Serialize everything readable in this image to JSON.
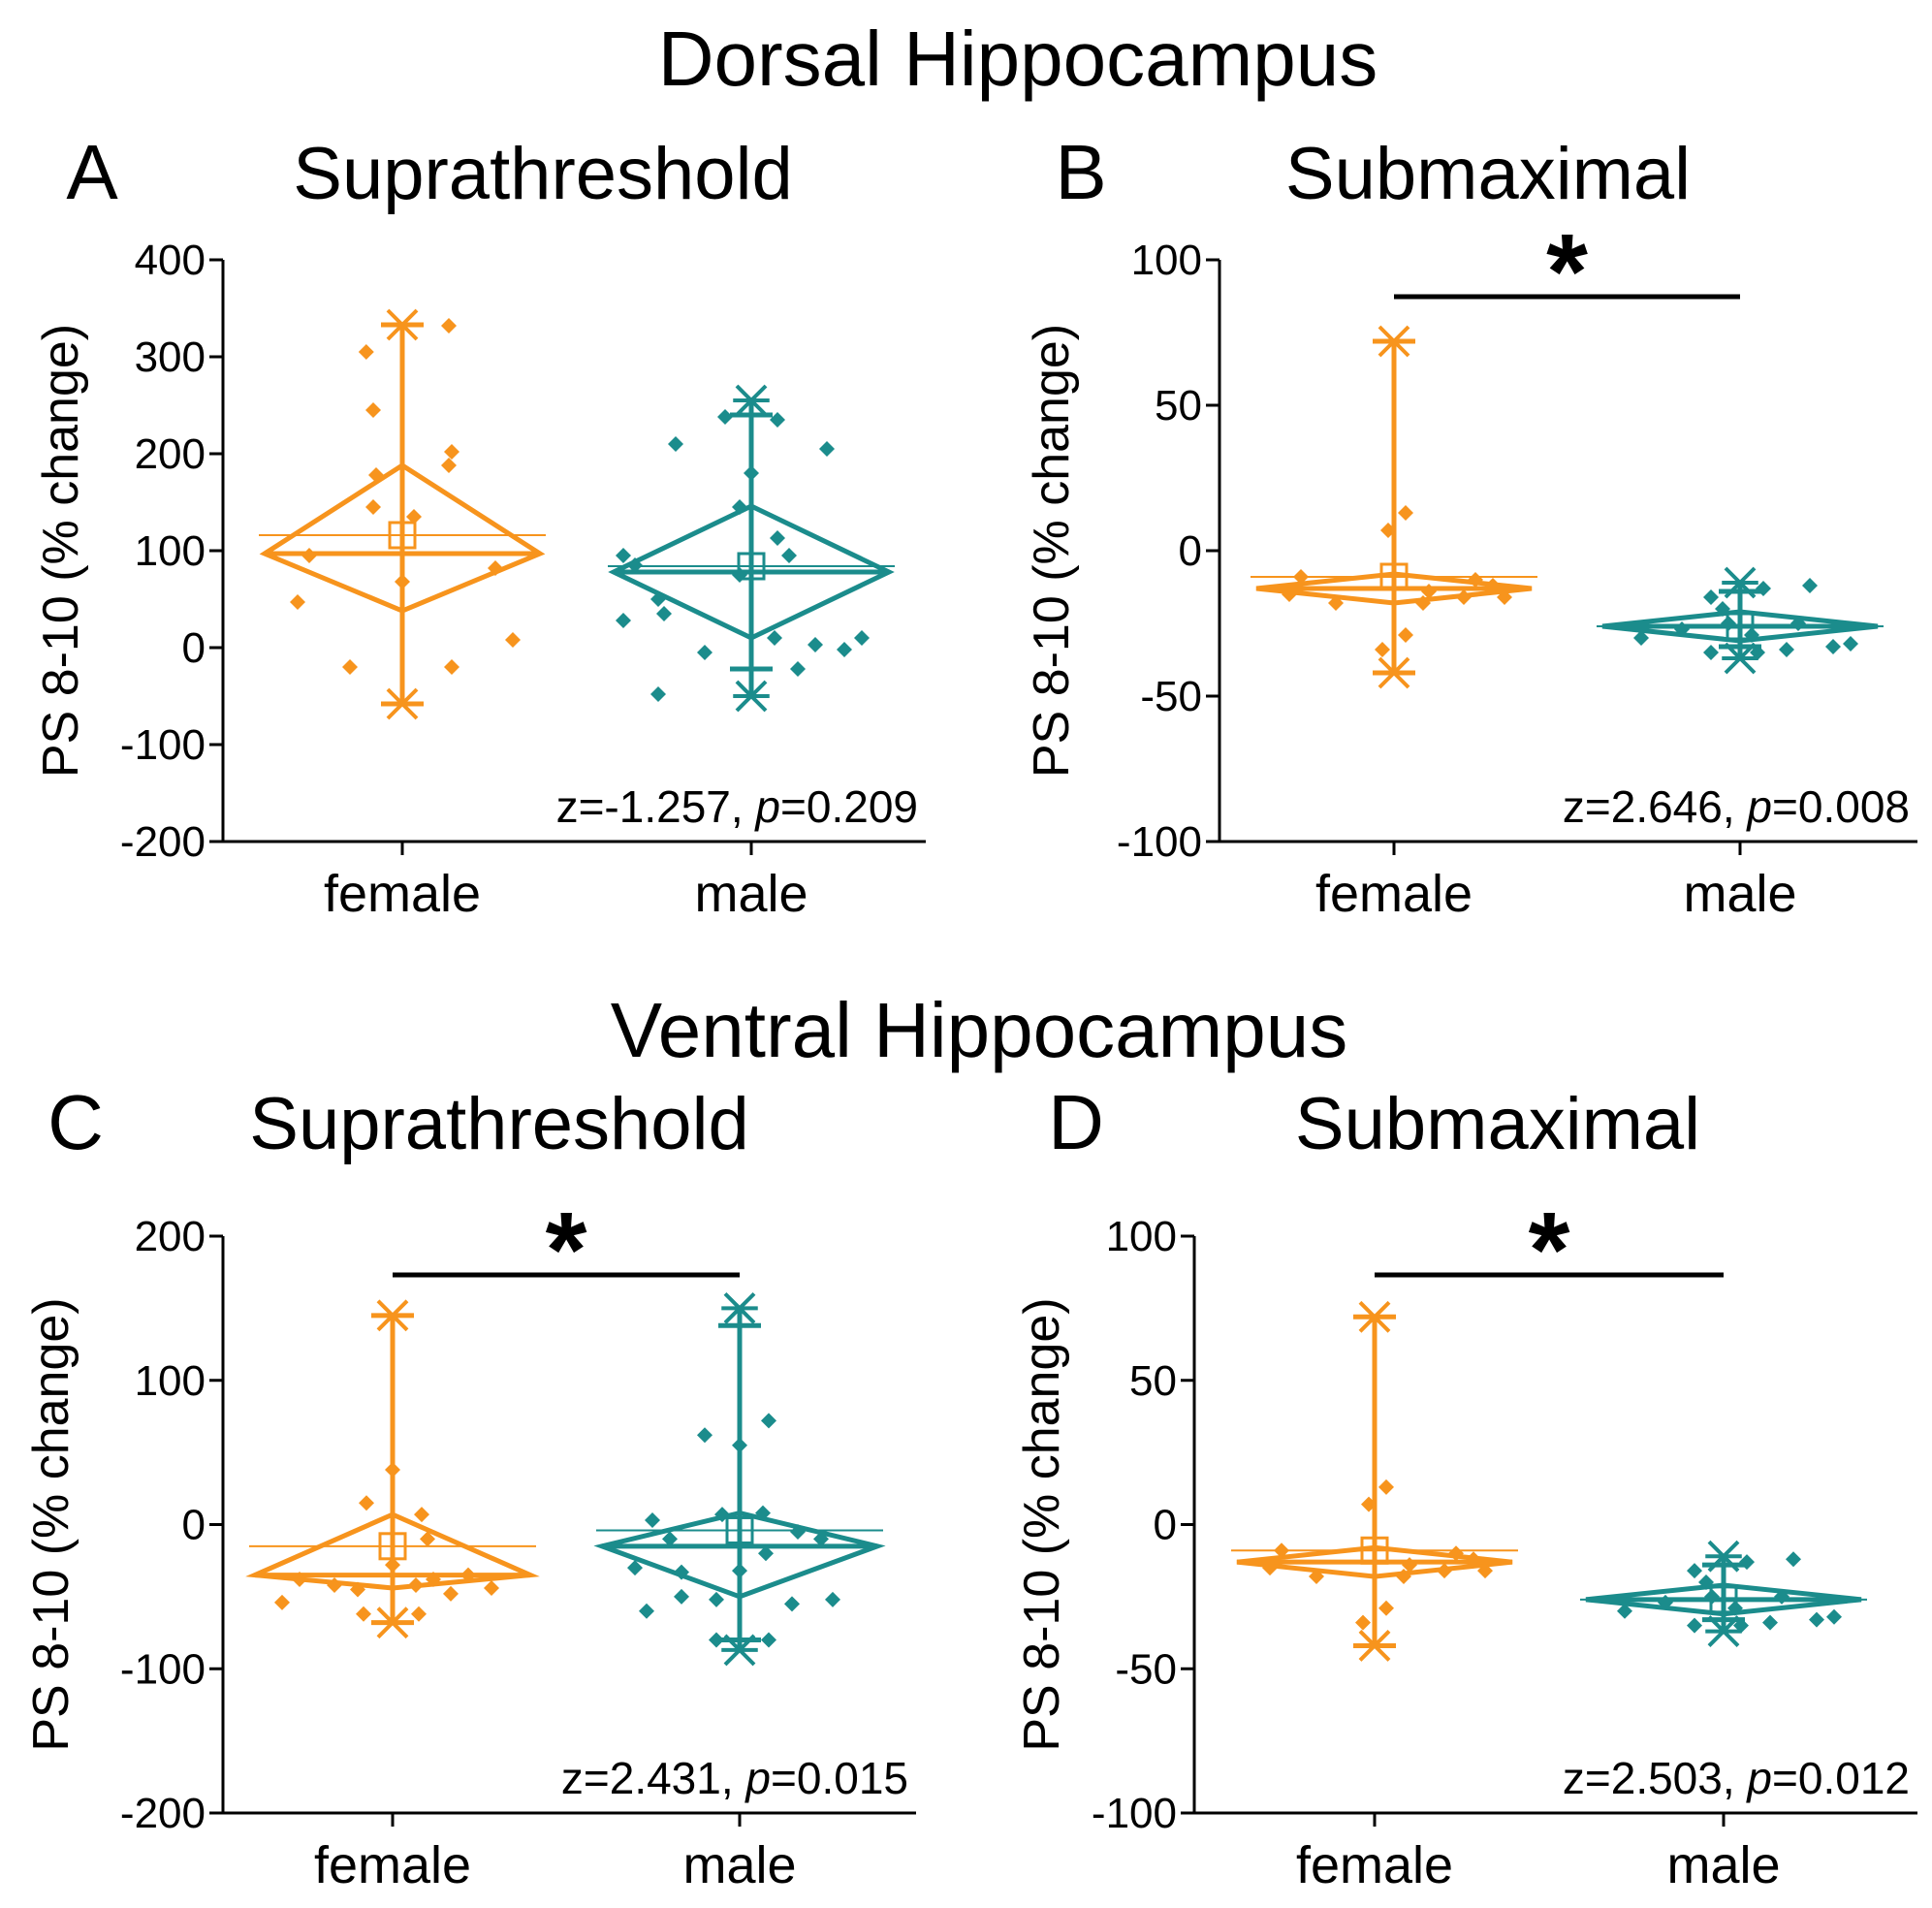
{
  "figure": {
    "section_titles": [
      "Dorsal Hippocampus",
      "Ventral Hippocampus"
    ],
    "colors": {
      "female": "#F7941D",
      "male": "#1B8C8C",
      "axis": "#000000"
    }
  },
  "chart_data": [
    {
      "type": "box",
      "panel": "A",
      "region": "Dorsal Hippocampus",
      "title": "Suprathreshold",
      "ylabel": "PS 8-10 (% change)",
      "ylim": [
        -200,
        400
      ],
      "yticks": [
        -200,
        -100,
        0,
        100,
        200,
        300,
        400
      ],
      "categories": [
        "female",
        "male"
      ],
      "stat": {
        "z": "z=-1.257, ",
        "p_label": "p",
        "p": "=0.209"
      },
      "significant": false,
      "series": [
        {
          "name": "female",
          "min": -58,
          "max": 333,
          "whisker_low": -58,
          "whisker_high": 333,
          "median": 97,
          "mean": 116,
          "ci_low": 38,
          "ci_high": 188,
          "points": [
            [
              -0.62,
              305
            ],
            [
              -0.5,
              245
            ],
            [
              -0.45,
              178
            ],
            [
              -0.5,
              145
            ],
            [
              0.2,
              135
            ],
            [
              0.8,
              332
            ],
            [
              0.85,
              202
            ],
            [
              0.8,
              188
            ],
            [
              -1.6,
              95
            ],
            [
              -1.8,
              47
            ],
            [
              0,
              68
            ],
            [
              1.6,
              82
            ],
            [
              -0.9,
              -20
            ],
            [
              1.9,
              8
            ],
            [
              0.85,
              -20
            ]
          ]
        },
        {
          "name": "male",
          "min": -50,
          "max": 255,
          "whisker_low": -22,
          "whisker_high": 240,
          "median": 78,
          "mean": 84,
          "ci_low": 10,
          "ci_high": 146,
          "points": [
            [
              -1.3,
              210
            ],
            [
              -0.2,
              145
            ],
            [
              0,
              180
            ],
            [
              -0.45,
              238
            ],
            [
              0.45,
              235
            ],
            [
              1.3,
              205
            ],
            [
              -2.2,
              95
            ],
            [
              -2.0,
              85
            ],
            [
              -1.6,
              50
            ],
            [
              -1.5,
              35
            ],
            [
              -2.2,
              28
            ],
            [
              -0.8,
              -5
            ],
            [
              0.4,
              10
            ],
            [
              0.45,
              113
            ],
            [
              0.65,
              95
            ],
            [
              1.1,
              3
            ],
            [
              1.6,
              -2
            ],
            [
              1.9,
              10
            ],
            [
              0.8,
              -22
            ],
            [
              -1.6,
              -48
            ],
            [
              -0.2,
              75
            ]
          ]
        }
      ]
    },
    {
      "type": "box",
      "panel": "B",
      "region": "Dorsal Hippocampus",
      "title": "Submaximal",
      "ylabel": "PS 8-10 (% change)",
      "ylim": [
        -100,
        100
      ],
      "yticks": [
        -100,
        -50,
        0,
        50,
        100
      ],
      "categories": [
        "female",
        "male"
      ],
      "stat": {
        "z": "z=2.646, ",
        "p_label": "p",
        "p": "=0.008"
      },
      "significant": true,
      "sig_mark": "*",
      "series": [
        {
          "name": "female",
          "min": -42,
          "max": 72,
          "whisker_low": -42,
          "whisker_high": 72,
          "median": -13,
          "mean": -9,
          "ci_low": -18,
          "ci_high": -8,
          "points": [
            [
              -0.1,
              7
            ],
            [
              0.2,
              13
            ],
            [
              -1.6,
              -9
            ],
            [
              -1.8,
              -15
            ],
            [
              -1.0,
              -18
            ],
            [
              0.6,
              -14
            ],
            [
              1.2,
              -16
            ],
            [
              1.4,
              -10
            ],
            [
              1.7,
              -12
            ],
            [
              1.9,
              -16
            ],
            [
              -0.2,
              -34
            ],
            [
              0.2,
              -29
            ],
            [
              0.5,
              -18
            ]
          ]
        },
        {
          "name": "male",
          "min": -37,
          "max": -11,
          "whisker_low": -33,
          "whisker_high": -14,
          "median": -26,
          "mean": -26,
          "ci_low": -31,
          "ci_high": -21,
          "points": [
            [
              -1.7,
              -30
            ],
            [
              -1.0,
              -27
            ],
            [
              -0.5,
              -16
            ],
            [
              -0.3,
              -20
            ],
            [
              -0.2,
              -25
            ],
            [
              0.3,
              -35
            ],
            [
              0.4,
              -13
            ],
            [
              0.8,
              -34
            ],
            [
              1.2,
              -12
            ],
            [
              1.0,
              -25
            ],
            [
              1.6,
              -33
            ],
            [
              1.9,
              -32
            ],
            [
              -0.5,
              -35
            ],
            [
              0.2,
              -29
            ]
          ]
        }
      ]
    },
    {
      "type": "box",
      "panel": "C",
      "region": "Ventral Hippocampus",
      "title": "Suprathreshold",
      "ylabel": "PS 8-10 (% change)",
      "ylim": [
        -200,
        200
      ],
      "yticks": [
        -200,
        -100,
        0,
        100,
        200
      ],
      "categories": [
        "female",
        "male"
      ],
      "stat": {
        "z": "z=2.431, ",
        "p_label": "p",
        "p": "=0.015"
      },
      "significant": true,
      "sig_mark": "*",
      "series": [
        {
          "name": "female",
          "min": -68,
          "max": 145,
          "whisker_low": -68,
          "whisker_high": 145,
          "median": -35,
          "mean": -15,
          "ci_low": -44,
          "ci_high": 7,
          "points": [
            [
              0,
              38
            ],
            [
              -0.45,
              15
            ],
            [
              0.5,
              7
            ],
            [
              0.6,
              -10
            ],
            [
              0.0,
              -28
            ],
            [
              -1.9,
              -54
            ],
            [
              -1.6,
              -38
            ],
            [
              -1.0,
              -42
            ],
            [
              -0.6,
              -45
            ],
            [
              0.4,
              -42
            ],
            [
              0.7,
              -38
            ],
            [
              1.0,
              -48
            ],
            [
              1.3,
              -35
            ],
            [
              1.7,
              -44
            ],
            [
              -0.5,
              -62
            ],
            [
              0.45,
              -62
            ]
          ]
        },
        {
          "name": "male",
          "min": -87,
          "max": 150,
          "whisker_low": -80,
          "whisker_high": 138,
          "median": -15,
          "mean": -4,
          "ci_low": -50,
          "ci_high": 8,
          "points": [
            [
              -0.6,
              62
            ],
            [
              0.5,
              72
            ],
            [
              0,
              55
            ],
            [
              -1.5,
              3
            ],
            [
              -1.2,
              -10
            ],
            [
              -0.3,
              7
            ],
            [
              0.4,
              8
            ],
            [
              1.0,
              -5
            ],
            [
              1.4,
              -10
            ],
            [
              -1.8,
              -30
            ],
            [
              -1.0,
              -33
            ],
            [
              0,
              -32
            ],
            [
              0.45,
              -20
            ],
            [
              -1.6,
              -60
            ],
            [
              -1.0,
              -50
            ],
            [
              -0.4,
              -52
            ],
            [
              0.9,
              -55
            ],
            [
              1.6,
              -52
            ],
            [
              -0.4,
              -80
            ],
            [
              0.5,
              -80
            ]
          ]
        }
      ]
    },
    {
      "type": "box",
      "panel": "D",
      "region": "Ventral Hippocampus",
      "title": "Submaximal",
      "ylabel": "PS 8-10 (% change)",
      "ylim": [
        -100,
        100
      ],
      "yticks": [
        -100,
        -50,
        0,
        50,
        100
      ],
      "categories": [
        "female",
        "male"
      ],
      "stat": {
        "z": "z=2.503, ",
        "p_label": "p",
        "p": "=0.012"
      },
      "significant": true,
      "sig_mark": "*",
      "series": [
        {
          "name": "female",
          "min": -42,
          "max": 72,
          "whisker_low": -42,
          "whisker_high": 72,
          "median": -13,
          "mean": -9,
          "ci_low": -18,
          "ci_high": -8,
          "points": [
            [
              -0.1,
              7
            ],
            [
              0.2,
              13
            ],
            [
              -1.6,
              -9
            ],
            [
              -1.8,
              -15
            ],
            [
              -1.0,
              -18
            ],
            [
              0.6,
              -14
            ],
            [
              1.2,
              -16
            ],
            [
              1.4,
              -10
            ],
            [
              1.7,
              -12
            ],
            [
              1.9,
              -16
            ],
            [
              -0.2,
              -34
            ],
            [
              0.2,
              -29
            ],
            [
              0.5,
              -18
            ]
          ]
        },
        {
          "name": "male",
          "min": -37,
          "max": -11,
          "whisker_low": -33,
          "whisker_high": -14,
          "median": -26,
          "mean": -26,
          "ci_low": -31,
          "ci_high": -21,
          "points": [
            [
              -1.7,
              -30
            ],
            [
              -1.0,
              -27
            ],
            [
              -0.5,
              -16
            ],
            [
              -0.3,
              -20
            ],
            [
              -0.2,
              -25
            ],
            [
              0.3,
              -35
            ],
            [
              0.4,
              -13
            ],
            [
              0.8,
              -34
            ],
            [
              1.2,
              -12
            ],
            [
              1.0,
              -25
            ],
            [
              1.6,
              -33
            ],
            [
              1.9,
              -32
            ],
            [
              -0.5,
              -35
            ],
            [
              0.2,
              -29
            ]
          ]
        }
      ]
    }
  ]
}
